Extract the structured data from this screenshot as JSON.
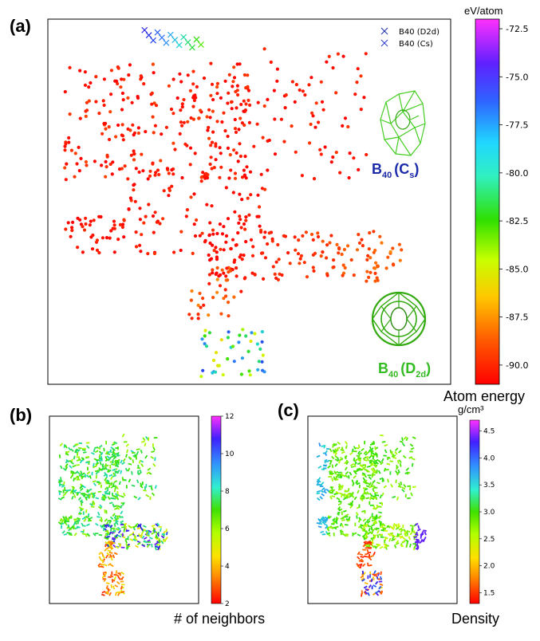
{
  "colors": {
    "jet_stops": [
      "#ff0000",
      "#ff6000",
      "#ffc800",
      "#c8ff00",
      "#30e000",
      "#20d8d0",
      "#3080ff",
      "#2020e0",
      "#8020ff",
      "#ff20ff"
    ],
    "cs_color": "#1a2aa8",
    "d2d_color": "#33bb22",
    "axes": "#000000"
  },
  "chart_data": [
    {
      "panel": "(a)",
      "type": "scatter",
      "title": "",
      "xlabel": "",
      "ylabel": "",
      "colorbar": {
        "title": "eV/atom",
        "caption": "Atom energy",
        "range": [
          -91.0,
          -72.0
        ],
        "ticks": [
          "-72.5",
          "-75.0",
          "-77.5",
          "-80.0",
          "-82.5",
          "-85.0",
          "-87.5",
          "-90.0"
        ],
        "tick_values": [
          -72.5,
          -75.0,
          -77.5,
          -80.0,
          -82.5,
          -85.0,
          -87.5,
          -90.0
        ]
      },
      "legend": {
        "placement": "top-right",
        "entries": [
          {
            "label": "B40 (D2d)",
            "marker": "x",
            "color": "#1a2aa8"
          },
          {
            "label": "B40 (Cs)",
            "marker": "x",
            "color": "#2a3ad0"
          }
        ]
      },
      "annotations": [
        {
          "label": "B",
          "sub": "40",
          "rest": "(C",
          "rest_sub": "s",
          "end": ")",
          "color": "#1a2aa8"
        },
        {
          "label": "B",
          "sub": "40",
          "rest": "(D",
          "rest_sub": "2d",
          "end": ")",
          "color": "#33bb22"
        }
      ],
      "clusters": [
        {
          "name": "upper-left spread",
          "x_range": [
            0.04,
            0.5
          ],
          "y_range": [
            0.56,
            0.88
          ],
          "count": 240,
          "value_range": [
            -91.0,
            -89.5
          ]
        },
        {
          "name": "upper-right spread",
          "x_range": [
            0.45,
            0.8
          ],
          "y_range": [
            0.56,
            0.92
          ],
          "count": 90,
          "value_range": [
            -91.0,
            -89.8
          ]
        },
        {
          "name": "middle band",
          "x_range": [
            0.2,
            0.55
          ],
          "y_range": [
            0.35,
            0.6
          ],
          "count": 110,
          "value_range": [
            -91.0,
            -89.8
          ]
        },
        {
          "name": "left lobe",
          "x_range": [
            0.04,
            0.22
          ],
          "y_range": [
            0.36,
            0.46
          ],
          "count": 45,
          "value_range": [
            -91.0,
            -90.0
          ]
        },
        {
          "name": "right arm",
          "x_range": [
            0.4,
            0.88
          ],
          "y_range": [
            0.28,
            0.42
          ],
          "count": 150,
          "value_range": [
            -91.0,
            -87.8
          ]
        },
        {
          "name": "lower stem",
          "x_range": [
            0.35,
            0.48
          ],
          "y_range": [
            0.18,
            0.32
          ],
          "count": 35,
          "value_range": [
            -90.5,
            -88.0
          ]
        },
        {
          "name": "bottom knot",
          "x_range": [
            0.37,
            0.54
          ],
          "y_range": [
            0.02,
            0.15
          ],
          "count": 45,
          "value_range": [
            -86.0,
            -77.0
          ]
        },
        {
          "name": "top cross row",
          "x_range": [
            0.24,
            0.38
          ],
          "y_range": [
            0.91,
            0.97
          ],
          "count": 14,
          "value_range": [
            -83.0,
            -76.0
          ]
        }
      ]
    },
    {
      "panel": "(b)",
      "type": "scatter",
      "title": "",
      "colorbar": {
        "title": "",
        "caption": "# of neighbors",
        "range": [
          2,
          12
        ],
        "ticks": [
          "12",
          "10",
          "8",
          "6",
          "4",
          "2"
        ],
        "tick_values": [
          12,
          10,
          8,
          6,
          4,
          2
        ]
      }
    },
    {
      "panel": "(c)",
      "type": "scatter",
      "title": "",
      "colorbar": {
        "title": "g/cm³",
        "caption": "Density",
        "range": [
          1.3,
          4.7
        ],
        "ticks": [
          "4.5",
          "4.0",
          "3.5",
          "3.0",
          "2.5",
          "2.0",
          "1.5"
        ],
        "tick_values": [
          4.5,
          4.0,
          3.5,
          3.0,
          2.5,
          2.0,
          1.5
        ]
      }
    }
  ]
}
